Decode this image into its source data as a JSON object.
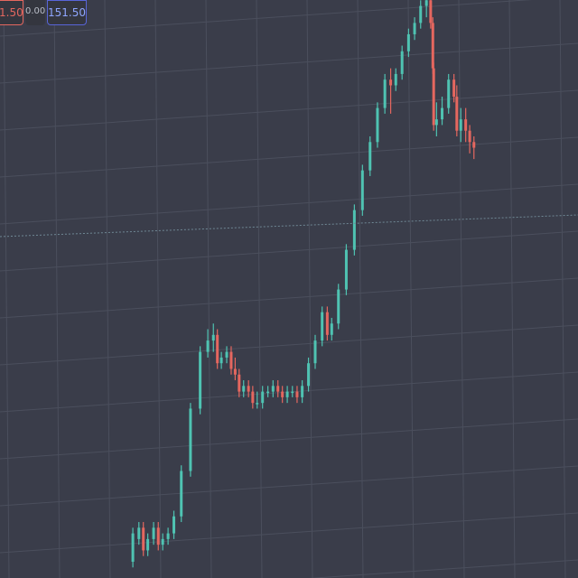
{
  "trade_bar": {
    "sell_price": "1.50",
    "spread": "0.00",
    "buy_price": "151.50"
  },
  "colors": {
    "background": "#3a3d4a",
    "grid": "#4b4f5d",
    "bull": "#4fc3b2",
    "bear": "#e5675f",
    "sell_border": "#e5675f",
    "buy_border": "#5865d8",
    "price_line": "#6f8794"
  },
  "chart_data": {
    "type": "candlestick",
    "title": "",
    "xlabel": "",
    "ylabel": "",
    "ylim": [
      0,
      100
    ],
    "x": [
      1,
      2,
      3,
      4,
      5,
      6,
      7,
      8,
      9,
      10,
      11,
      12,
      13,
      14,
      15,
      16,
      17,
      18,
      19,
      20,
      21,
      22,
      23,
      24,
      25,
      26,
      27,
      28,
      29,
      30,
      31,
      32,
      33,
      34,
      35,
      36,
      37,
      38,
      39,
      40,
      41,
      42,
      43,
      44,
      45,
      46,
      47,
      48,
      49,
      50,
      51,
      52,
      53,
      54,
      55,
      56,
      57,
      58,
      59,
      60,
      61,
      62,
      63,
      64
    ],
    "series": [
      {
        "open": [
          0,
          4,
          6,
          2,
          4,
          6,
          3,
          4,
          5,
          8,
          16,
          27,
          37,
          39,
          40,
          35,
          36,
          37,
          34,
          33,
          30,
          31,
          30,
          28,
          28,
          30,
          30,
          31,
          30,
          29,
          30,
          30,
          29,
          31,
          35,
          39,
          44,
          40,
          42,
          48,
          55,
          62,
          69,
          74,
          80,
          85,
          84,
          86,
          90,
          93,
          95,
          98,
          99,
          95,
          87,
          77,
          78,
          80,
          85,
          82,
          76,
          78,
          76,
          74
        ],
        "close": [
          5,
          6,
          2,
          4,
          6,
          3,
          4,
          5,
          8,
          16,
          27,
          37,
          39,
          40,
          35,
          36,
          37,
          34,
          33,
          30,
          31,
          30,
          28,
          28,
          30,
          30,
          31,
          30,
          29,
          30,
          30,
          29,
          31,
          35,
          39,
          44,
          40,
          42,
          48,
          55,
          62,
          69,
          74,
          80,
          85,
          84,
          86,
          90,
          93,
          95,
          98,
          99,
          95,
          87,
          77,
          78,
          80,
          85,
          82,
          76,
          78,
          76,
          74,
          73
        ],
        "high": [
          6,
          7,
          7,
          5,
          7,
          7,
          5,
          6,
          9,
          17,
          28,
          38,
          41,
          42,
          41,
          37,
          38,
          38,
          36,
          34,
          32,
          32,
          31,
          30,
          31,
          31,
          32,
          32,
          31,
          31,
          31,
          31,
          32,
          36,
          40,
          45,
          45,
          43,
          49,
          56,
          63,
          70,
          75,
          81,
          86,
          87,
          87,
          91,
          94,
          96,
          99,
          100,
          100,
          96,
          88,
          81,
          82,
          86,
          86,
          84,
          80,
          80,
          77,
          75
        ],
        "low": [
          -1,
          3,
          1,
          1,
          3,
          2,
          2,
          3,
          4,
          7,
          15,
          26,
          36,
          37,
          34,
          34,
          35,
          33,
          32,
          29,
          29,
          29,
          27,
          27,
          27,
          29,
          29,
          29,
          28,
          28,
          29,
          28,
          28,
          30,
          34,
          38,
          39,
          39,
          41,
          47,
          54,
          61,
          68,
          73,
          79,
          79,
          83,
          85,
          89,
          92,
          94,
          96,
          94,
          86,
          76,
          75,
          77,
          79,
          81,
          75,
          74,
          74,
          72,
          71
        ]
      }
    ],
    "grid": true,
    "current_price_line": true
  }
}
